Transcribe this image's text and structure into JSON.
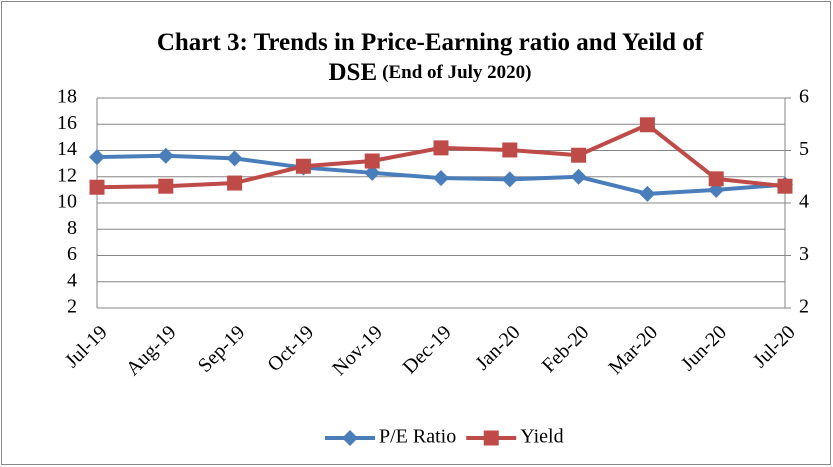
{
  "chart_data": {
    "type": "line",
    "title": [
      "Chart 3: Trends in Price-Earning ratio and Yeild of",
      "DSE"
    ],
    "subtitle": "(End of July 2020)",
    "categories": [
      "Jul-19",
      "Aug-19",
      "Sep-19",
      "Oct-19",
      "Nov-19",
      "Dec-19",
      "Jan-20",
      "Feb-20",
      "Mar-20",
      "Jun-20",
      "Jul-20"
    ],
    "series": [
      {
        "name": "P/E Ratio",
        "color": "#4a7ebb",
        "marker": "diamond",
        "values": [
          13.5,
          13.6,
          13.4,
          12.7,
          12.3,
          11.9,
          11.8,
          12.0,
          10.7,
          11.0,
          11.4
        ]
      },
      {
        "name": "Yield",
        "color": "#be4b48",
        "marker": "square",
        "axis": "y2",
        "values": [
          4.3,
          4.32,
          4.38,
          4.7,
          4.8,
          5.05,
          5.01,
          4.91,
          5.49,
          4.46,
          4.32
        ]
      }
    ],
    "ylim": [
      2,
      18
    ],
    "yticks": [
      2,
      4,
      6,
      8,
      10,
      12,
      14,
      16,
      18
    ],
    "y2lim": [
      2,
      6
    ],
    "y2ticks": [
      2,
      3,
      4,
      5,
      6
    ],
    "grid": true,
    "legend": "bottom"
  }
}
